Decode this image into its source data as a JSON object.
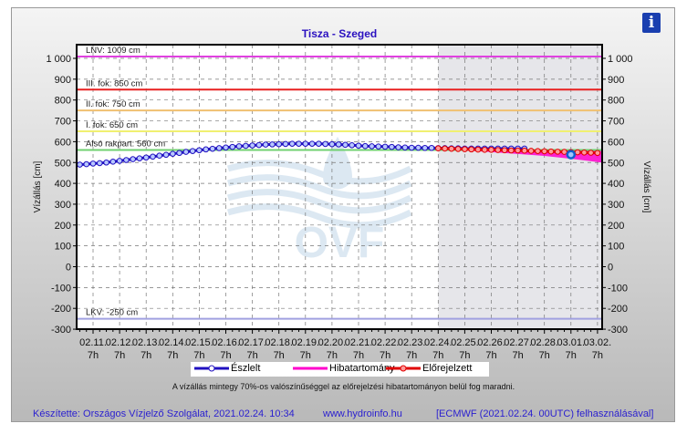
{
  "chart_data": {
    "type": "line",
    "title": "Tisza - Szeged",
    "ylabel": "Vízállás [cm]",
    "ylim": [
      -300,
      1070
    ],
    "yticks": [
      -300,
      -200,
      -100,
      0,
      100,
      200,
      300,
      400,
      500,
      600,
      700,
      800,
      900,
      1000
    ],
    "ytick_labels": [
      "-300",
      "-200",
      "-100",
      "0",
      "100",
      "200",
      "300",
      "400",
      "500",
      "600",
      "700",
      "800",
      "900",
      "1 000"
    ],
    "xtick_dates": [
      "02.11.",
      "02.12.",
      "02.13.",
      "02.14.",
      "02.15.",
      "02.16.",
      "02.17.",
      "02.18.",
      "02.19.",
      "02.20.",
      "02.21.",
      "02.22.",
      "02.23.",
      "02.24.",
      "02.25.",
      "02.26.",
      "02.27.",
      "02.28.",
      "03.01.",
      "03.02."
    ],
    "xtick_hour": "7h",
    "levels": [
      {
        "label": "LNV: 1009 cm",
        "value": 1009,
        "color": "#e040e0"
      },
      {
        "label": "III. fok: 850 cm",
        "value": 850,
        "color": "#e82020"
      },
      {
        "label": "II. fok: 750 cm",
        "value": 750,
        "color": "#f0c070"
      },
      {
        "label": "I. fok: 650 cm",
        "value": 650,
        "color": "#f0f070"
      },
      {
        "label": "Alsó rakpart: 560 cm",
        "value": 560,
        "color": "#70d070"
      },
      {
        "label": "LKV: -250 cm",
        "value": -250,
        "color": "#a0a0e0"
      }
    ],
    "forecast_start_day": 13,
    "observed": {
      "name": "Észlelt",
      "color": "#2010c0",
      "start_day": -0.5,
      "step_days": 0.25,
      "values": [
        490,
        492,
        495,
        497,
        500,
        504,
        508,
        512,
        516,
        520,
        524,
        528,
        533,
        537,
        542,
        546,
        551,
        555,
        559,
        563,
        566,
        569,
        572,
        575,
        578,
        580,
        582,
        584,
        586,
        587,
        588,
        589,
        590,
        590,
        590,
        590,
        590,
        589,
        588,
        587,
        585,
        583,
        581,
        579,
        578,
        577,
        576,
        575,
        573,
        572,
        571,
        571,
        570,
        570,
        569,
        569,
        568,
        568,
        567,
        567,
        567,
        567,
        567,
        567,
        567,
        567,
        567,
        567
      ]
    },
    "forecast": {
      "name": "Előrejelzett",
      "color": "#e00000",
      "start_day": 13,
      "step_days": 0.25,
      "values": [
        568,
        567,
        566,
        565,
        564,
        563,
        562,
        561,
        561,
        560,
        559,
        558,
        558,
        557,
        556,
        555,
        554,
        553,
        552,
        551,
        550,
        549,
        548,
        547,
        546,
        544,
        542,
        540,
        538,
        536,
        534,
        532,
        530,
        529,
        528
      ]
    },
    "band": {
      "name": "Hibatartomány",
      "color": "#ff00cc",
      "days": [
        13,
        14,
        15,
        16,
        17,
        18,
        19,
        19.15
      ],
      "upper": [
        568,
        566,
        563,
        561,
        559,
        557,
        556,
        556
      ],
      "lower": [
        568,
        558,
        550,
        541,
        532,
        518,
        502,
        500
      ]
    },
    "marker": {
      "day": 18,
      "value": 538,
      "color": "#1060d0"
    }
  },
  "legend": {
    "observed": "Észlelt",
    "band": "Hibatartomány",
    "forecast": "Előrejelzett"
  },
  "note": "A vízállás mintegy 70%-os valószínűséggel az előrejelzési hibatartományon belül fog maradni.",
  "footer": {
    "author": "Készítette: Országos Vízjelző Szolgálat, 2021.02.24. 10:34",
    "url": "www.hydroinfo.hu",
    "source": "[ECMWF (2021.02.24. 00UTC) felhasználásával]"
  },
  "watermark": "OVF",
  "info_label": "i"
}
